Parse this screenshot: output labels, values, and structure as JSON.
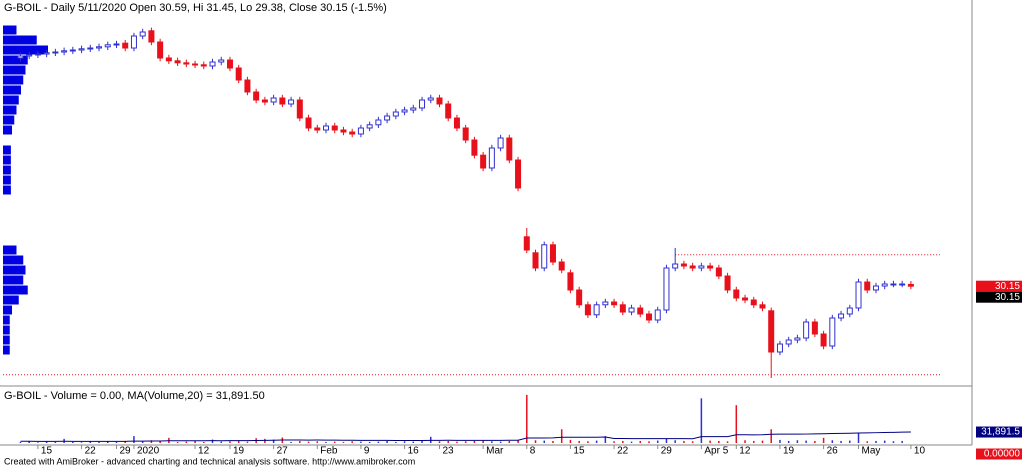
{
  "chart_data": [
    {
      "type": "candlestick",
      "title": "G-BOIL - Daily 5/11/2020 Open 30.59, Hi 31.45, Lo 29.38, Close 30.15 (-1.5%)",
      "open": [
        87.2,
        87.7,
        88.0,
        88.2,
        88.5,
        88.7,
        89.0,
        89.2,
        89.5,
        89.7,
        90.0,
        90.5,
        90.9,
        89.7,
        92.7,
        94.0,
        91.2,
        87.2,
        86.5,
        86.0,
        85.7,
        85.5,
        85.2,
        86.2,
        86.7,
        84.7,
        81.7,
        78.7,
        76.7,
        76.2,
        77.2,
        75.7,
        76.7,
        72.2,
        69.7,
        69.2,
        70.2,
        69.2,
        68.7,
        68.2,
        69.7,
        70.5,
        71.7,
        72.7,
        73.7,
        74.2,
        74.7,
        76.7,
        77.2,
        75.7,
        72.2,
        69.7,
        66.7,
        62.9,
        59.7,
        64.7,
        67.2,
        61.7,
        42.5,
        38.5,
        34.7,
        40.5,
        36.2,
        33.5,
        29.2,
        25.5,
        23.0,
        25.5,
        26.2,
        25.5,
        23.7,
        24.7,
        23.2,
        21.7,
        24.2,
        34.7,
        35.7,
        35.2,
        34.7,
        35.2,
        34.7,
        32.7,
        29.2,
        27.2,
        26.7,
        25.5,
        24.0,
        13.7,
        15.7,
        16.7,
        17.2,
        21.2,
        18.2,
        15.2,
        22.2,
        23.2,
        24.7,
        31.2,
        29.2,
        30.2,
        30.7,
        30.7,
        30.59
      ],
      "high": [
        88.5,
        88.8,
        89.0,
        89.3,
        89.5,
        89.8,
        90.0,
        90.3,
        90.5,
        90.8,
        91.3,
        91.5,
        91.7,
        93.5,
        94.5,
        94.8,
        92.0,
        88.0,
        87.3,
        86.8,
        86.5,
        86.3,
        87.0,
        87.5,
        87.5,
        85.5,
        82.5,
        79.5,
        77.5,
        78.0,
        78.0,
        77.5,
        77.5,
        73.0,
        70.5,
        71.0,
        71.0,
        70.0,
        69.5,
        70.5,
        71.3,
        72.5,
        73.5,
        74.5,
        75.0,
        75.5,
        77.5,
        78.0,
        78.0,
        76.5,
        73.0,
        70.5,
        67.5,
        63.7,
        65.5,
        68.0,
        68.0,
        62.5,
        44.7,
        39.3,
        41.3,
        41.3,
        37.0,
        34.3,
        30.0,
        26.3,
        26.3,
        27.0,
        27.0,
        26.3,
        25.5,
        25.5,
        24.0,
        25.0,
        35.5,
        39.7,
        36.5,
        36.0,
        36.0,
        36.0,
        35.5,
        33.5,
        30.0,
        28.0,
        27.5,
        26.3,
        24.8,
        16.5,
        17.5,
        18.0,
        22.0,
        22.0,
        19.0,
        23.0,
        24.0,
        25.5,
        32.0,
        32.0,
        31.0,
        31.5,
        31.5,
        31.5,
        31.45
      ],
      "low": [
        86.4,
        86.9,
        87.2,
        87.4,
        87.7,
        87.9,
        88.2,
        88.4,
        88.7,
        88.9,
        89.2,
        89.7,
        88.9,
        88.9,
        91.9,
        90.4,
        86.4,
        85.7,
        85.2,
        84.9,
        84.7,
        84.4,
        84.4,
        85.4,
        83.9,
        80.9,
        77.9,
        75.9,
        75.4,
        75.4,
        74.9,
        74.9,
        71.4,
        68.9,
        68.4,
        68.4,
        68.4,
        67.9,
        67.4,
        67.4,
        68.9,
        69.7,
        70.9,
        71.9,
        72.9,
        73.4,
        73.9,
        75.9,
        74.9,
        71.4,
        68.9,
        65.9,
        62.1,
        58.9,
        58.9,
        63.9,
        60.9,
        53.9,
        38.4,
        33.9,
        33.9,
        35.4,
        33.4,
        28.4,
        24.7,
        22.2,
        22.2,
        24.7,
        24.7,
        22.9,
        22.9,
        22.4,
        20.9,
        20.9,
        23.4,
        33.9,
        34.4,
        33.9,
        33.9,
        33.9,
        31.9,
        28.4,
        26.4,
        25.9,
        24.7,
        23.9,
        7.2,
        12.9,
        14.9,
        15.9,
        16.4,
        17.4,
        14.4,
        14.4,
        21.4,
        22.4,
        23.9,
        28.4,
        28.4,
        29.4,
        29.9,
        29.9,
        29.38
      ],
      "close": [
        87.7,
        88.0,
        88.2,
        88.5,
        88.7,
        89.0,
        89.2,
        89.5,
        89.7,
        90.0,
        90.5,
        90.7,
        89.7,
        92.7,
        93.7,
        91.2,
        87.2,
        86.5,
        86.0,
        85.7,
        85.5,
        85.2,
        86.2,
        86.7,
        84.7,
        81.7,
        78.7,
        76.7,
        76.2,
        77.2,
        75.7,
        76.7,
        72.2,
        69.7,
        69.2,
        70.2,
        69.2,
        68.7,
        68.2,
        69.7,
        70.5,
        71.7,
        72.7,
        73.7,
        74.2,
        74.7,
        76.7,
        77.2,
        75.7,
        72.2,
        69.7,
        66.7,
        62.9,
        59.7,
        64.7,
        67.2,
        61.7,
        54.7,
        39.2,
        34.7,
        40.5,
        36.2,
        34.2,
        29.2,
        25.5,
        23.0,
        25.5,
        26.2,
        25.5,
        23.7,
        24.7,
        23.2,
        21.7,
        24.2,
        34.7,
        35.7,
        35.2,
        34.7,
        35.2,
        34.7,
        32.7,
        29.2,
        27.2,
        26.7,
        25.5,
        24.7,
        13.7,
        15.7,
        16.7,
        17.2,
        21.2,
        18.2,
        15.2,
        22.2,
        23.2,
        24.7,
        31.2,
        29.2,
        30.2,
        30.7,
        30.7,
        30.7,
        30.15
      ],
      "up_color": "#3030d0",
      "down_color": "#e8101a",
      "xlim": [
        -2,
        109
      ],
      "ylim": [
        5.45,
        101.2
      ],
      "reference_lines": [
        {
          "value": 38.0,
          "start": 75,
          "color": "#e8101a"
        },
        {
          "value": 8.0,
          "color": "#e8101a"
        }
      ],
      "volume_profile": {
        "color": "#0000e0",
        "prices": [
          94.2,
          91.7,
          89.2,
          86.7,
          84.2,
          81.7,
          79.2,
          76.7,
          74.2,
          71.7,
          69.2,
          64.2,
          61.7,
          59.2,
          56.7,
          54.2,
          39.2,
          36.7,
          34.2,
          31.7,
          29.2,
          26.7,
          24.2,
          21.7,
          19.2,
          16.7,
          14.2
        ],
        "sizes": [
          12,
          30,
          40,
          22,
          20,
          18,
          16,
          14,
          12,
          10,
          8,
          7,
          7,
          7,
          7,
          7,
          12,
          18,
          20,
          18,
          22,
          14,
          8,
          6,
          6,
          6,
          6
        ]
      },
      "last_labels": [
        {
          "value": 30.15,
          "label": "30.15",
          "color": "#e8101a"
        },
        {
          "value": 30.15,
          "label": "30.15",
          "color": "#000000"
        }
      ]
    },
    {
      "type": "volume",
      "title": "G-BOIL - Volume = 0.00, MA(Volume,20) = 31,891.50",
      "values": [
        3000,
        5000,
        2000,
        4000,
        3000,
        12000,
        3000,
        2000,
        4000,
        3000,
        5000,
        3000,
        6000,
        20000,
        4000,
        8000,
        5000,
        15000,
        3000,
        4000,
        6000,
        3000,
        10000,
        4000,
        5000,
        7000,
        4000,
        14000,
        12000,
        10000,
        16000,
        3000,
        6000,
        4000,
        5000,
        3000,
        4000,
        3000,
        5000,
        4000,
        3000,
        4000,
        6000,
        3000,
        5000,
        4000,
        7000,
        18000,
        5000,
        6000,
        4000,
        5000,
        6000,
        8000,
        5000,
        4000,
        6000,
        9000,
        140000,
        8000,
        7000,
        6000,
        40000,
        9000,
        6000,
        5000,
        7000,
        20000,
        5000,
        6000,
        4000,
        6000,
        5000,
        7000,
        12000,
        8000,
        6000,
        5000,
        130000,
        7000,
        6000,
        5000,
        110000,
        8000,
        6000,
        7000,
        40000,
        9000,
        6000,
        8000,
        7000,
        6000,
        15000,
        8000,
        6000,
        7000,
        30000,
        5000,
        6000,
        7000,
        5000,
        6000,
        0
      ],
      "ma": [
        5000,
        5000,
        4800,
        4700,
        4600,
        5000,
        4900,
        4800,
        4800,
        4700,
        4800,
        4700,
        4800,
        5600,
        5600,
        5800,
        5900,
        6500,
        6400,
        6500,
        6600,
        6500,
        6800,
        6700,
        6800,
        7000,
        7000,
        7400,
        7800,
        8100,
        8700,
        8700,
        8700,
        8500,
        8600,
        8400,
        8300,
        7900,
        8000,
        7700,
        7600,
        7600,
        7500,
        7400,
        7200,
        7100,
        7200,
        7800,
        7800,
        7900,
        7600,
        7700,
        7700,
        7800,
        7800,
        7800,
        7900,
        8000,
        14500,
        14600,
        14700,
        14800,
        16600,
        16800,
        16800,
        16800,
        16800,
        17400,
        13000,
        13100,
        12900,
        12900,
        12800,
        12700,
        12600,
        12700,
        12600,
        12500,
        18600,
        18700,
        18700,
        18600,
        23900,
        23900,
        23800,
        23900,
        25600,
        25700,
        25800,
        25800,
        26000,
        26500,
        27000,
        27500,
        28000,
        28500,
        29000,
        29500,
        30000,
        30500,
        31000,
        31500,
        31891.5
      ],
      "ma_color": "#000080",
      "xlim": [
        -2,
        109
      ],
      "ylim": [
        0,
        160000
      ],
      "xticks": [
        {
          "value": 2,
          "label": "15"
        },
        {
          "value": 7,
          "label": "22"
        },
        {
          "value": 11,
          "label": "29"
        },
        {
          "value": 13,
          "label": "2020"
        },
        {
          "value": 20,
          "label": "12"
        },
        {
          "value": 24,
          "label": "19"
        },
        {
          "value": 29,
          "label": "27"
        },
        {
          "value": 34,
          "label": "Feb"
        },
        {
          "value": 39,
          "label": "9"
        },
        {
          "value": 44,
          "label": "16"
        },
        {
          "value": 48,
          "label": "23"
        },
        {
          "value": 53,
          "label": "Mar"
        },
        {
          "value": 58,
          "label": "8"
        },
        {
          "value": 63,
          "label": "15"
        },
        {
          "value": 68,
          "label": "22"
        },
        {
          "value": 73,
          "label": "29"
        },
        {
          "value": 78,
          "label": "Apr 5"
        },
        {
          "value": 82,
          "label": "12"
        },
        {
          "value": 87,
          "label": "19"
        },
        {
          "value": 92,
          "label": "26"
        },
        {
          "value": 96,
          "label": "May"
        },
        {
          "value": 102,
          "label": "10"
        }
      ],
      "last_labels": [
        {
          "value": 31891.5,
          "label": "31,891.5",
          "color": "#000080"
        },
        {
          "value": 0,
          "label": "0.00000",
          "color": "#e8101a"
        }
      ]
    }
  ],
  "footer": "Created with AmiBroker - advanced charting and technical analysis software. http://www.amibroker.com"
}
